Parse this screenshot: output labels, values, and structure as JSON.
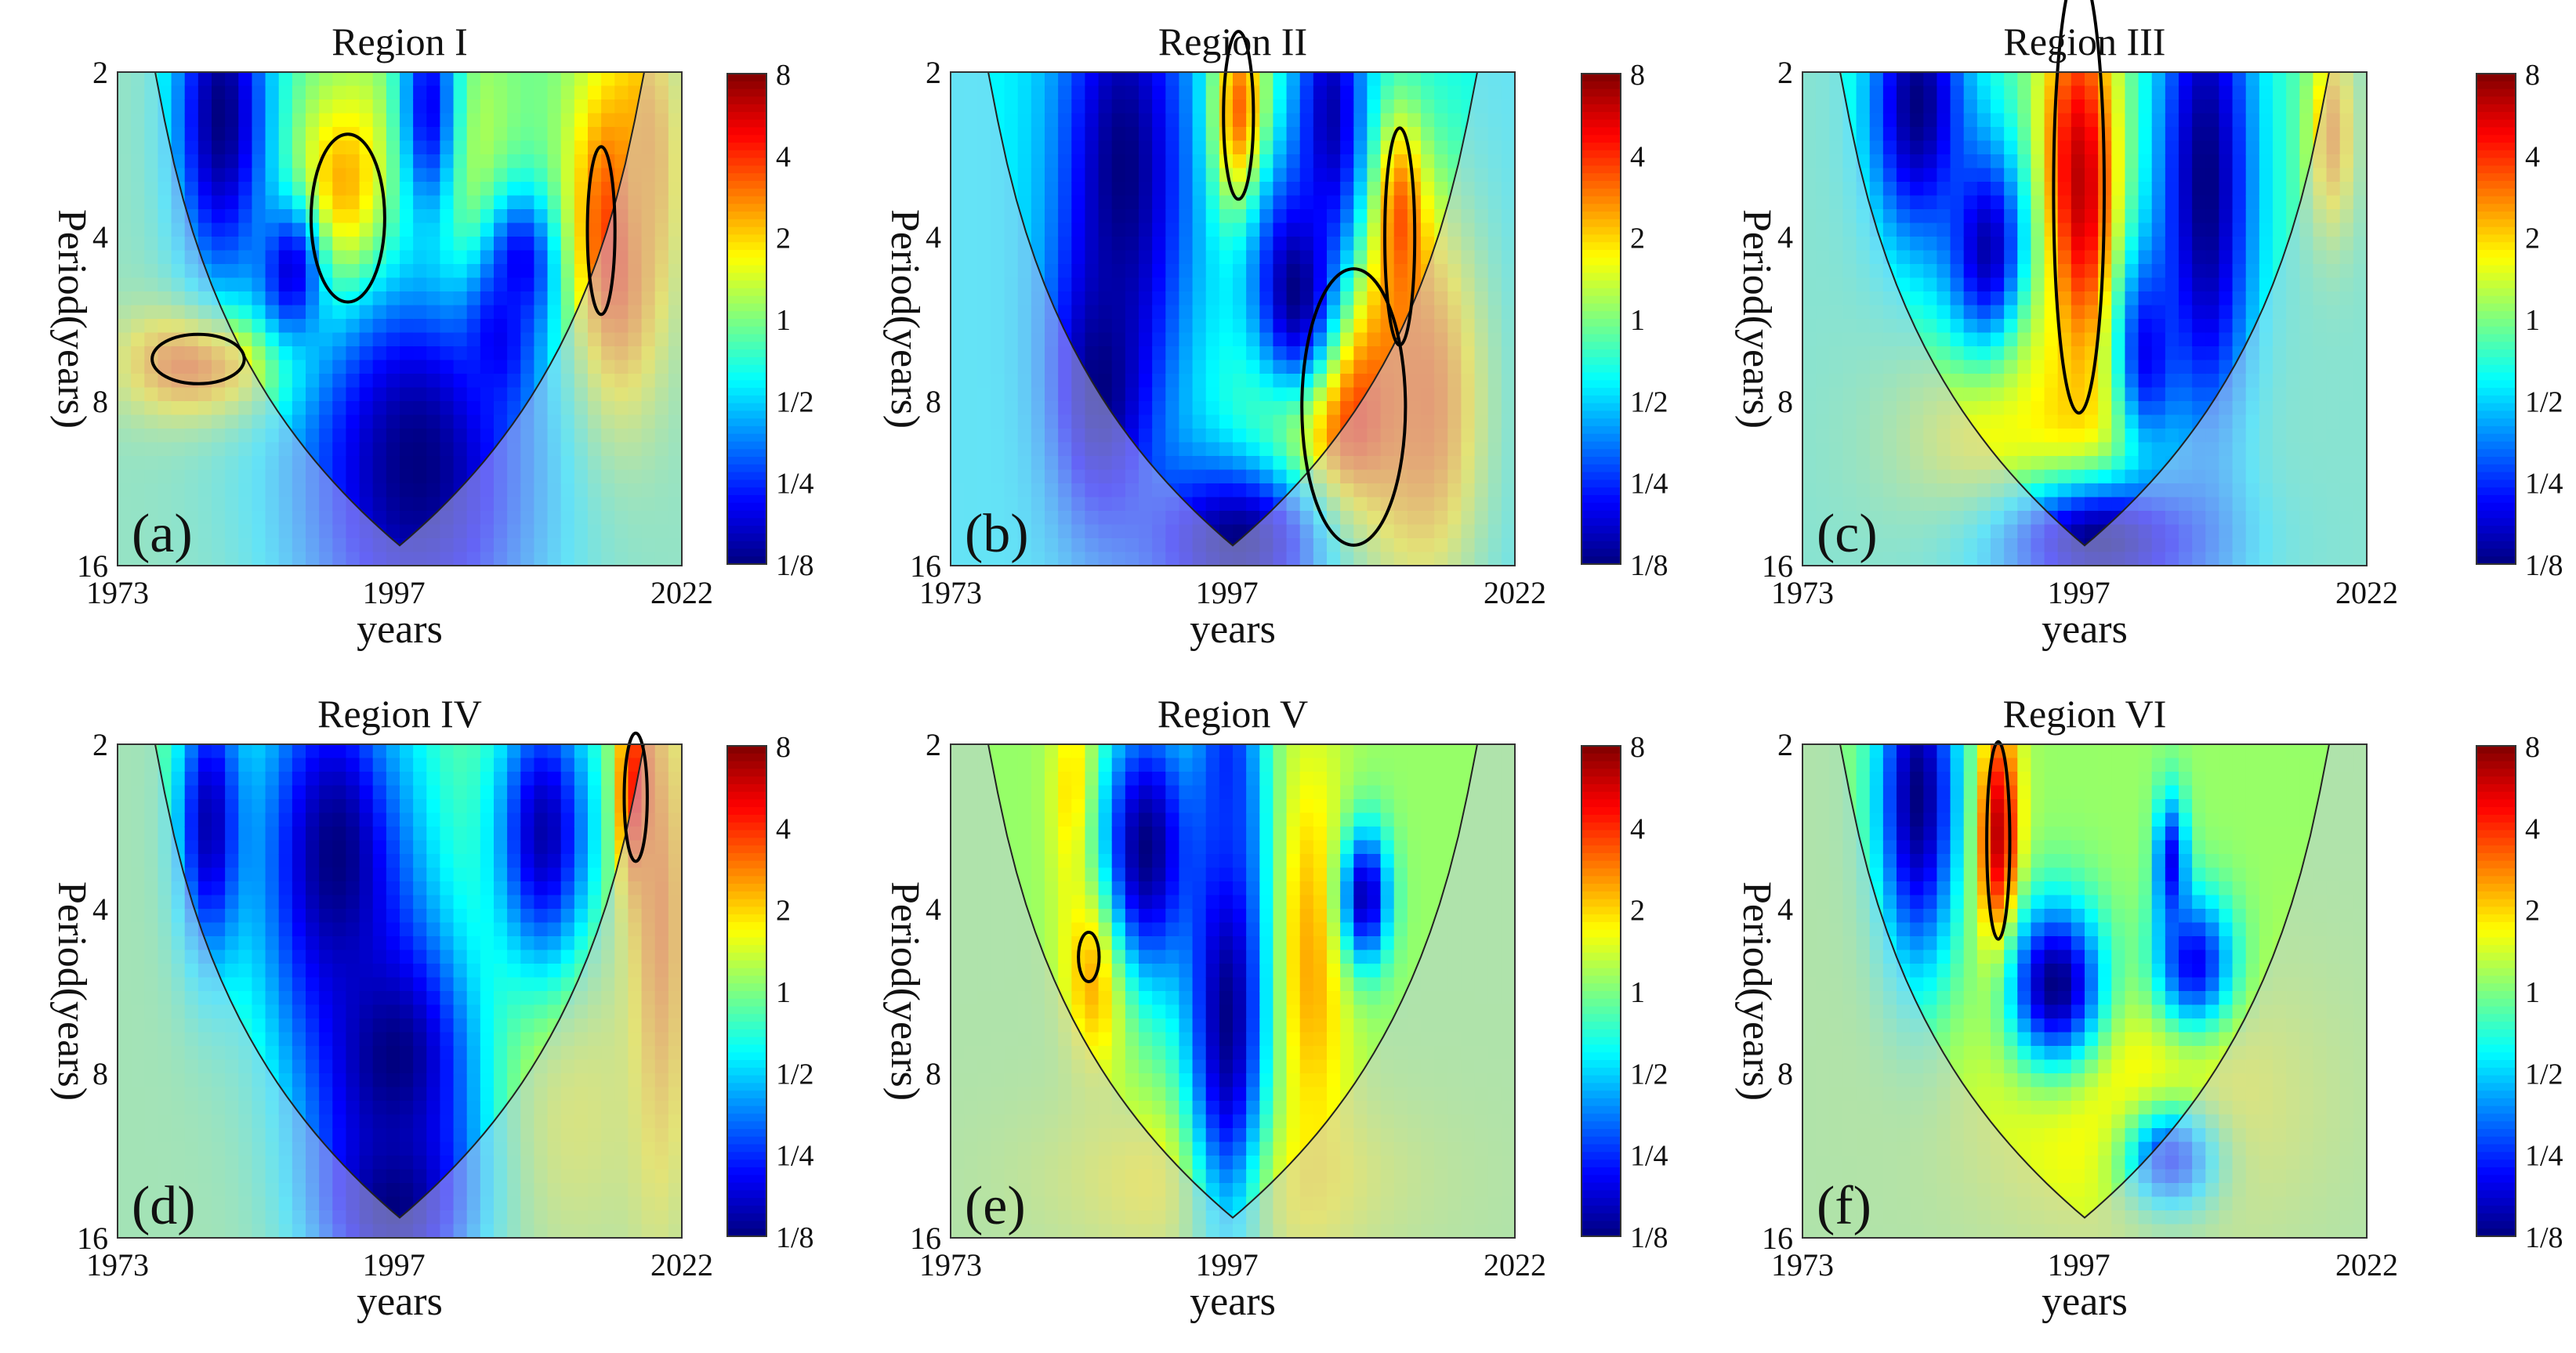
{
  "figure": {
    "xlabel": "years",
    "ylabel": "Period(years)",
    "colorbar_ticks": [
      "8",
      "4",
      "2",
      "1",
      "1/2",
      "1/4",
      "1/8"
    ],
    "x_ticks": [
      "1973",
      "1997",
      "2022"
    ],
    "y_ticks": [
      "2",
      "4",
      "8",
      "16"
    ]
  },
  "chart_data": [
    {
      "type": "heatmap",
      "panel_label": "(a)",
      "title": "Region I",
      "xlabel": "years",
      "ylabel": "Period(years)",
      "xlim": [
        1973,
        2022
      ],
      "ylim": [
        2,
        16
      ],
      "y_scale": "log2",
      "colorbar": {
        "scale": "log2",
        "range": [
          0.125,
          8
        ],
        "colormap": "jet"
      },
      "base_power": 0.9,
      "hotspots": [
        {
          "year": 1993,
          "period": 3.7,
          "power": 6,
          "sy": 3.5,
          "sp": 0.16
        },
        {
          "year": 2001,
          "period": 3.9,
          "power": 4,
          "sy": 4,
          "sp": 0.25
        },
        {
          "year": 2016,
          "period": 4.2,
          "power": 5,
          "sy": 3,
          "sp": 0.25
        },
        {
          "year": 1981,
          "period": 6.8,
          "power": 5,
          "sy": 5,
          "sp": 0.08
        },
        {
          "year": 2019,
          "period": 2.8,
          "power": 2.5,
          "sy": 2,
          "sp": 0.2
        }
      ],
      "lowspots": [
        {
          "year": 1982,
          "period": 2.4,
          "power": 0.125,
          "sy": 3,
          "sp": 0.25
        },
        {
          "year": 1988,
          "period": 4.6,
          "power": 0.2,
          "sy": 2,
          "sp": 0.1
        },
        {
          "year": 1999,
          "period": 10.5,
          "power": 0.125,
          "sy": 8,
          "sp": 0.35
        },
        {
          "year": 2008,
          "period": 4.5,
          "power": 0.2,
          "sy": 2,
          "sp": 0.1
        },
        {
          "year": 2006,
          "period": 6.2,
          "power": 0.2,
          "sy": 2,
          "sp": 0.1
        },
        {
          "year": 2000,
          "period": 2.3,
          "power": 0.2,
          "sy": 2,
          "sp": 0.2
        }
      ],
      "significant": [
        {
          "year": 1993,
          "period": 3.7,
          "ry": 3.2,
          "rp": 0.17
        },
        {
          "year": 1980,
          "period": 6.7,
          "ry": 4,
          "rp": 0.05
        },
        {
          "year": 2015,
          "period": 3.9,
          "ry": 1.2,
          "rp": 0.17
        }
      ]
    },
    {
      "type": "heatmap",
      "panel_label": "(b)",
      "title": "Region II",
      "xlabel": "years",
      "ylabel": "Period(years)",
      "xlim": [
        1973,
        2022
      ],
      "ylim": [
        2,
        16
      ],
      "y_scale": "log2",
      "colorbar": {
        "scale": "log2",
        "range": [
          0.125,
          8
        ],
        "colormap": "jet"
      },
      "base_power": 0.6,
      "hotspots": [
        {
          "year": 2007,
          "period": 8.2,
          "power": 8,
          "sy": 5,
          "sp": 0.22
        },
        {
          "year": 1998,
          "period": 2.4,
          "power": 4,
          "sy": 1.8,
          "sp": 0.15
        },
        {
          "year": 2012,
          "period": 3.9,
          "power": 4,
          "sy": 1.5,
          "sp": 0.15
        },
        {
          "year": 2014,
          "period": 8,
          "power": 3,
          "sy": 4,
          "sp": 0.3
        }
      ],
      "lowspots": [
        {
          "year": 1988,
          "period": 3.0,
          "power": 0.125,
          "sy": 4,
          "sp": 0.35
        },
        {
          "year": 1986,
          "period": 7.5,
          "power": 0.125,
          "sy": 3,
          "sp": 0.2
        },
        {
          "year": 2003,
          "period": 5.0,
          "power": 0.125,
          "sy": 3,
          "sp": 0.18
        },
        {
          "year": 1998,
          "period": 14.5,
          "power": 0.125,
          "sy": 6,
          "sp": 0.12
        },
        {
          "year": 2006,
          "period": 2.4,
          "power": 0.15,
          "sy": 2,
          "sp": 0.2
        }
      ],
      "significant": [
        {
          "year": 1998,
          "period": 2.4,
          "ry": 1.3,
          "rp": 0.17
        },
        {
          "year": 2012,
          "period": 4.0,
          "ry": 1.3,
          "rp": 0.22
        },
        {
          "year": 2008,
          "period": 8.2,
          "ry": 4.5,
          "rp": 0.28
        }
      ]
    },
    {
      "type": "heatmap",
      "panel_label": "(c)",
      "title": "Region III",
      "xlabel": "years",
      "ylabel": "Period(years)",
      "xlim": [
        1973,
        2022
      ],
      "ylim": [
        2,
        16
      ],
      "y_scale": "log2",
      "colorbar": {
        "scale": "log2",
        "range": [
          0.125,
          8
        ],
        "colormap": "jet"
      },
      "base_power": 0.8,
      "hotspots": [
        {
          "year": 1997,
          "period": 3.4,
          "power": 7,
          "sy": 2.5,
          "sp": 0.3
        },
        {
          "year": 1994,
          "period": 9.5,
          "power": 2.5,
          "sy": 8,
          "sp": 0.15
        },
        {
          "year": 2019,
          "period": 2.6,
          "power": 2.5,
          "sy": 1.5,
          "sp": 0.15
        },
        {
          "year": 1992,
          "period": 6.5,
          "power": 1.8,
          "sy": 3,
          "sp": 0.2
        }
      ],
      "lowspots": [
        {
          "year": 1983,
          "period": 2.3,
          "power": 0.125,
          "sy": 3,
          "sp": 0.2
        },
        {
          "year": 2008,
          "period": 3.2,
          "power": 0.125,
          "sy": 3,
          "sp": 0.4
        },
        {
          "year": 1989,
          "period": 4.2,
          "power": 0.15,
          "sy": 2.5,
          "sp": 0.15
        },
        {
          "year": 1999,
          "period": 14.5,
          "power": 0.125,
          "sy": 7,
          "sp": 0.1
        },
        {
          "year": 2003,
          "period": 6.5,
          "power": 0.2,
          "sy": 2,
          "sp": 0.15
        }
      ],
      "significant": [
        {
          "year": 1997,
          "period": 3.3,
          "ry": 2.2,
          "rp": 0.45
        }
      ]
    },
    {
      "type": "heatmap",
      "panel_label": "(d)",
      "title": "Region IV",
      "xlabel": "years",
      "ylabel": "Period(years)",
      "xlim": [
        1973,
        2022
      ],
      "ylim": [
        2,
        16
      ],
      "y_scale": "log2",
      "colorbar": {
        "scale": "log2",
        "range": [
          0.125,
          8
        ],
        "colormap": "jet"
      },
      "base_power": 1.0,
      "hotspots": [
        {
          "year": 2018,
          "period": 2.5,
          "power": 7,
          "sy": 1.2,
          "sp": 0.15
        },
        {
          "year": 2020,
          "period": 4.5,
          "power": 3,
          "sy": 2,
          "sp": 0.4
        },
        {
          "year": 1995,
          "period": 2.4,
          "power": 1.6,
          "sy": 2,
          "sp": 0.15
        },
        {
          "year": 2012,
          "period": 9,
          "power": 1.6,
          "sy": 5,
          "sp": 0.25
        }
      ],
      "lowspots": [
        {
          "year": 1992,
          "period": 3.2,
          "power": 0.125,
          "sy": 5,
          "sp": 0.3
        },
        {
          "year": 1997,
          "period": 7.5,
          "power": 0.125,
          "sy": 5,
          "sp": 0.2
        },
        {
          "year": 1997,
          "period": 14,
          "power": 0.125,
          "sy": 5,
          "sp": 0.15
        },
        {
          "year": 1981,
          "period": 2.8,
          "power": 0.15,
          "sy": 2,
          "sp": 0.2
        },
        {
          "year": 2010,
          "period": 2.9,
          "power": 0.15,
          "sy": 3,
          "sp": 0.2
        }
      ],
      "significant": [
        {
          "year": 2018,
          "period": 2.5,
          "ry": 1.0,
          "rp": 0.13
        }
      ]
    },
    {
      "type": "heatmap",
      "panel_label": "(e)",
      "title": "Region V",
      "xlabel": "years",
      "ylabel": "Period(years)",
      "xlim": [
        1973,
        2022
      ],
      "ylim": [
        2,
        16
      ],
      "y_scale": "log2",
      "colorbar": {
        "scale": "log2",
        "range": [
          0.125,
          8
        ],
        "colormap": "jet"
      },
      "base_power": 1.1,
      "hotspots": [
        {
          "year": 1986,
          "period": 4.8,
          "power": 4,
          "sy": 2,
          "sp": 0.15
        },
        {
          "year": 2004,
          "period": 5.0,
          "power": 2.5,
          "sy": 2.5,
          "sp": 0.3
        },
        {
          "year": 1984,
          "period": 2.5,
          "power": 2.5,
          "sy": 1.5,
          "sp": 0.15
        },
        {
          "year": 1997,
          "period": 12.5,
          "power": 2.0,
          "sy": 10,
          "sp": 0.12
        }
      ],
      "lowspots": [
        {
          "year": 1990,
          "period": 3.1,
          "power": 0.125,
          "sy": 3,
          "sp": 0.2
        },
        {
          "year": 1997,
          "period": 6.0,
          "power": 0.125,
          "sy": 2.5,
          "sp": 0.35
        },
        {
          "year": 2009,
          "period": 3.8,
          "power": 0.15,
          "sy": 1.5,
          "sp": 0.1
        },
        {
          "year": 1997,
          "period": 2.2,
          "power": 0.25,
          "sy": 2,
          "sp": 0.2
        }
      ],
      "significant": [
        {
          "year": 1985,
          "period": 4.9,
          "ry": 0.9,
          "rp": 0.05
        }
      ]
    },
    {
      "type": "heatmap",
      "panel_label": "(f)",
      "title": "Region VI",
      "xlabel": "years",
      "ylabel": "Period(years)",
      "xlim": [
        1973,
        2022
      ],
      "ylim": [
        2,
        16
      ],
      "y_scale": "log2",
      "colorbar": {
        "scale": "log2",
        "range": [
          0.125,
          8
        ],
        "colormap": "jet"
      },
      "base_power": 1.1,
      "hotspots": [
        {
          "year": 1990,
          "period": 3.0,
          "power": 7,
          "sy": 1.3,
          "sp": 0.18
        },
        {
          "year": 2002,
          "period": 9.0,
          "power": 2.0,
          "sy": 10,
          "sp": 0.2
        }
      ],
      "lowspots": [
        {
          "year": 1983,
          "period": 2.5,
          "power": 0.125,
          "sy": 2.5,
          "sp": 0.25
        },
        {
          "year": 1995,
          "period": 5.5,
          "power": 0.125,
          "sy": 3,
          "sp": 0.12
        },
        {
          "year": 2007,
          "period": 5.0,
          "power": 0.2,
          "sy": 2.5,
          "sp": 0.1
        },
        {
          "year": 2005,
          "period": 11.5,
          "power": 0.25,
          "sy": 3,
          "sp": 0.08
        },
        {
          "year": 2005,
          "period": 3.3,
          "power": 0.2,
          "sy": 1,
          "sp": 0.1
        }
      ],
      "significant": [
        {
          "year": 1990,
          "period": 3.0,
          "ry": 1.0,
          "rp": 0.2
        }
      ]
    }
  ]
}
